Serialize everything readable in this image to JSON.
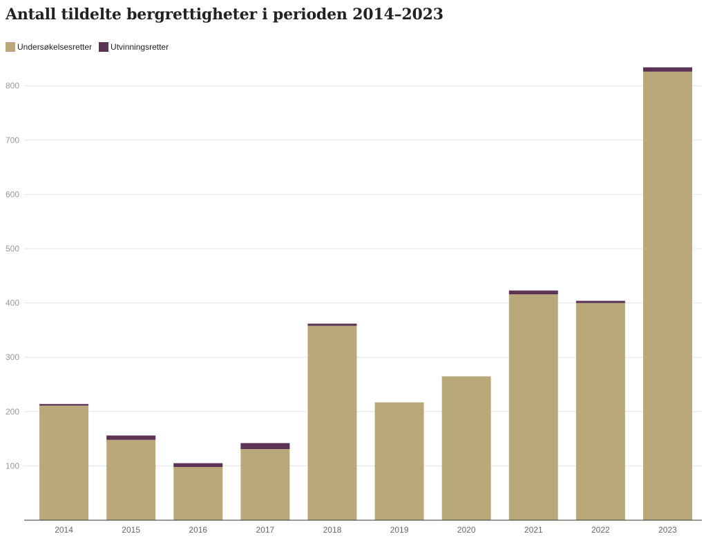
{
  "chart_data": {
    "type": "bar",
    "stacked": true,
    "title": "Antall tildelte bergrettigheter i perioden 2014–2023",
    "categories": [
      "2014",
      "2015",
      "2016",
      "2017",
      "2018",
      "2019",
      "2020",
      "2021",
      "2022",
      "2023"
    ],
    "series": [
      {
        "name": "Undersøkelsesretter",
        "color": "#b9a97a",
        "values": [
          211,
          148,
          98,
          131,
          358,
          217,
          265,
          416,
          400,
          826
        ]
      },
      {
        "name": "Utvinningsretter",
        "color": "#5c3354",
        "values": [
          3,
          8,
          7,
          11,
          4,
          0,
          0,
          7,
          4,
          8
        ]
      }
    ],
    "yticks": [
      100,
      200,
      300,
      400,
      500,
      600,
      700,
      800
    ],
    "ylim": [
      0,
      840
    ],
    "grid": true,
    "legend": "top-left",
    "xlabel": "",
    "ylabel": ""
  }
}
